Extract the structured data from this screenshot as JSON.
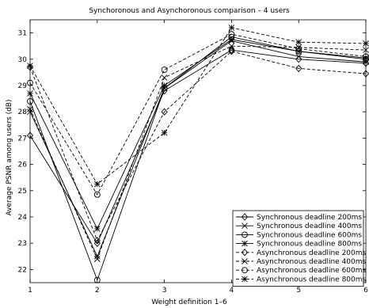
{
  "chart_data": {
    "type": "line",
    "title": "Synchoronous and Asynchoronous comparison – 4 users",
    "xlabel": "Weight definition 1–6",
    "ylabel": "Average PSNR among users (dB)",
    "xlim": [
      1,
      6
    ],
    "ylim": [
      21.5,
      31.5
    ],
    "x": [
      1,
      2,
      3,
      4,
      5,
      6
    ],
    "xticks": [
      "1",
      "2",
      "3",
      "4",
      "5",
      "6"
    ],
    "yticks": [
      "22",
      "23",
      "24",
      "25",
      "26",
      "27",
      "28",
      "29",
      "30",
      "31"
    ],
    "grid": true,
    "legend_position": "bottom-right",
    "series": [
      {
        "name": "Synchronous deadline 200ms",
        "line": "solid",
        "marker": "diamond",
        "values": [
          27.1,
          23.0,
          28.8,
          30.35,
          30.0,
          29.85
        ]
      },
      {
        "name": "Synchronous deadline 400ms",
        "line": "solid",
        "marker": "x",
        "values": [
          28.0,
          22.5,
          28.9,
          30.7,
          30.1,
          29.9
        ]
      },
      {
        "name": "Synchronous deadline 600ms",
        "line": "solid",
        "marker": "circle",
        "values": [
          28.4,
          21.6,
          28.9,
          30.85,
          30.3,
          30.0
        ]
      },
      {
        "name": "Synchronous deadline 800ms",
        "line": "solid",
        "marker": "star",
        "values": [
          28.7,
          23.55,
          29.0,
          30.75,
          30.3,
          30.05
        ]
      },
      {
        "name": "Asynchronous deadline 200ms",
        "line": "dashed",
        "marker": "diamond",
        "values": [
          29.7,
          23.1,
          28.0,
          30.3,
          29.65,
          29.45
        ]
      },
      {
        "name": "Asynchronous deadline 400ms",
        "line": "dashed",
        "marker": "x",
        "values": [
          28.1,
          22.4,
          29.3,
          30.5,
          30.45,
          30.35
        ]
      },
      {
        "name": "Asynchronous deadline 600ms",
        "line": "dashed",
        "marker": "circle",
        "values": [
          29.1,
          24.85,
          29.6,
          30.95,
          30.4,
          30.1
        ]
      },
      {
        "name": "Asynchronous deadline 800ms",
        "line": "dashed",
        "marker": "star",
        "values": [
          29.75,
          25.25,
          27.2,
          31.2,
          30.65,
          30.6
        ]
      }
    ]
  }
}
